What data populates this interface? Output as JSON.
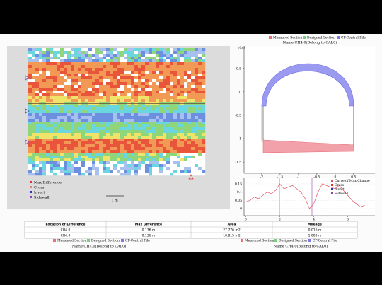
{
  "left_panel": {
    "legend": [
      "Max Difference",
      "Cross",
      "Invert",
      "Sidewall"
    ],
    "scale_label": "1 m"
  },
  "section_plot": {
    "legend": [
      {
        "name": "Measured Section",
        "color": "#e8707a"
      },
      {
        "name": "Designed Section",
        "color": "#7ad07a"
      },
      {
        "name": "CP-Central File",
        "color": "#7b7be8"
      }
    ],
    "title": "Name CH4.0(Belong to CAL0)",
    "y_axis_label": "y(m)",
    "xlim": [
      -2.48,
      1.08
    ],
    "ylim": [
      -1.74,
      0.98
    ],
    "xticks": [
      -2,
      -1.5,
      -1,
      -0.5,
      0,
      0.5
    ],
    "yticks": [
      0.5,
      0,
      -0.5,
      -1,
      -1.5
    ]
  },
  "change_chart": {
    "type": "line",
    "legend": [
      {
        "name": "Curve of Max Change",
        "color": "#e05060"
      },
      {
        "name": "Cross",
        "color": "#e03030"
      },
      {
        "name": "Invert",
        "color": "#3030c0"
      },
      {
        "name": "Sidewall",
        "color": "#9040b0"
      }
    ],
    "color": "#e05060",
    "x": [
      0,
      0.25,
      0.5,
      0.75,
      1,
      1.25,
      1.5,
      1.75,
      2,
      2.25,
      2.5,
      2.75,
      3,
      3.25,
      3.5,
      3.75,
      4,
      4.25,
      4.5,
      4.75,
      5,
      5.25,
      5.5,
      5.75,
      6,
      6.25,
      6.5,
      6.75,
      7
    ],
    "values": [
      0.04,
      0.05,
      0.07,
      0.06,
      0.08,
      0.1,
      0.09,
      0.11,
      0.15,
      0.12,
      0.13,
      0.14,
      0.12,
      0.1,
      0.06,
      0.0,
      0.03,
      0.1,
      0.15,
      0.14,
      0.13,
      0.12,
      0.14,
      0.11,
      0.08,
      0.05,
      0.03,
      0.01,
      0.02
    ],
    "xlim": [
      -0.1,
      7.6
    ],
    "ylim": [
      -0.043,
      0.184
    ],
    "xticks": [
      0,
      2,
      4,
      6
    ],
    "yticks": [
      0.15,
      0.1,
      0.05,
      0
    ]
  },
  "table": {
    "headers": [
      "Location of Difference",
      "Max Difference",
      "Area",
      "Mileage"
    ],
    "rows": [
      [
        "CH4.0",
        "0.136 m",
        "27.776 m2",
        "0.016 m"
      ],
      [
        "CH4.0",
        "0.136 m",
        "10.815 m2",
        "1.000 m"
      ]
    ]
  }
}
